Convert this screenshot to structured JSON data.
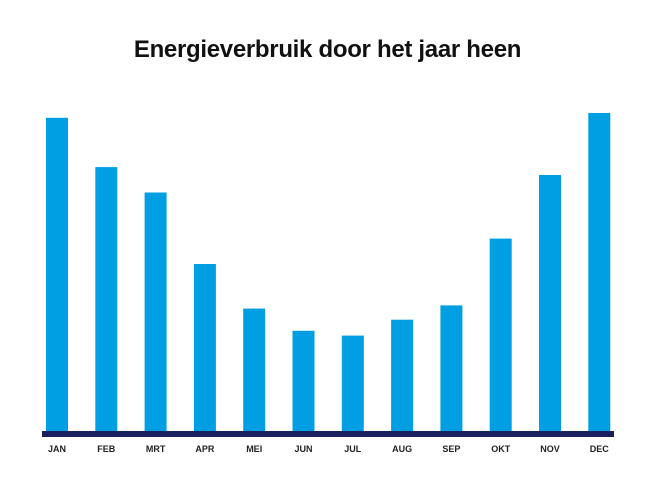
{
  "chart_data": {
    "type": "bar",
    "title": "Energieverbruik door het jaar heen",
    "xlabel": "",
    "ylabel": "",
    "categories": [
      "JAN",
      "FEB",
      "MRT",
      "APR",
      "MEI",
      "JUN",
      "JUL",
      "AUG",
      "SEP",
      "OKT",
      "NOV",
      "DEC"
    ],
    "values": [
      98.5,
      83,
      75,
      52.5,
      38.5,
      31.5,
      30,
      35,
      39.5,
      60.5,
      80.5,
      100
    ],
    "ylim": [
      0,
      100
    ],
    "grid": false,
    "legend": "none",
    "colors": {
      "bar": "#009fe3",
      "axis": "#1b2060"
    }
  }
}
